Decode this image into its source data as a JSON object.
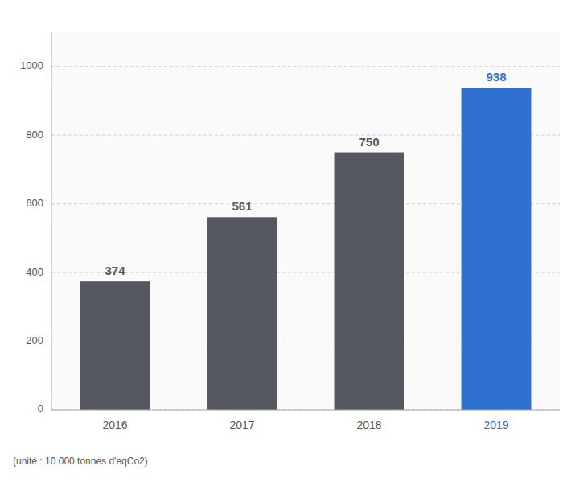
{
  "chart_data": {
    "type": "bar",
    "categories": [
      "2016",
      "2017",
      "2018",
      "2019"
    ],
    "values": [
      374,
      561,
      750,
      938
    ],
    "colors": [
      "#555860",
      "#555860",
      "#555860",
      "#3070d0"
    ],
    "ylim": [
      0,
      1100
    ],
    "yticks": [
      0,
      200,
      400,
      600,
      800,
      1000
    ],
    "grid": true,
    "data_labels": true,
    "footnote": "(unité : 10 000 tonnes d'eqCo2)"
  }
}
